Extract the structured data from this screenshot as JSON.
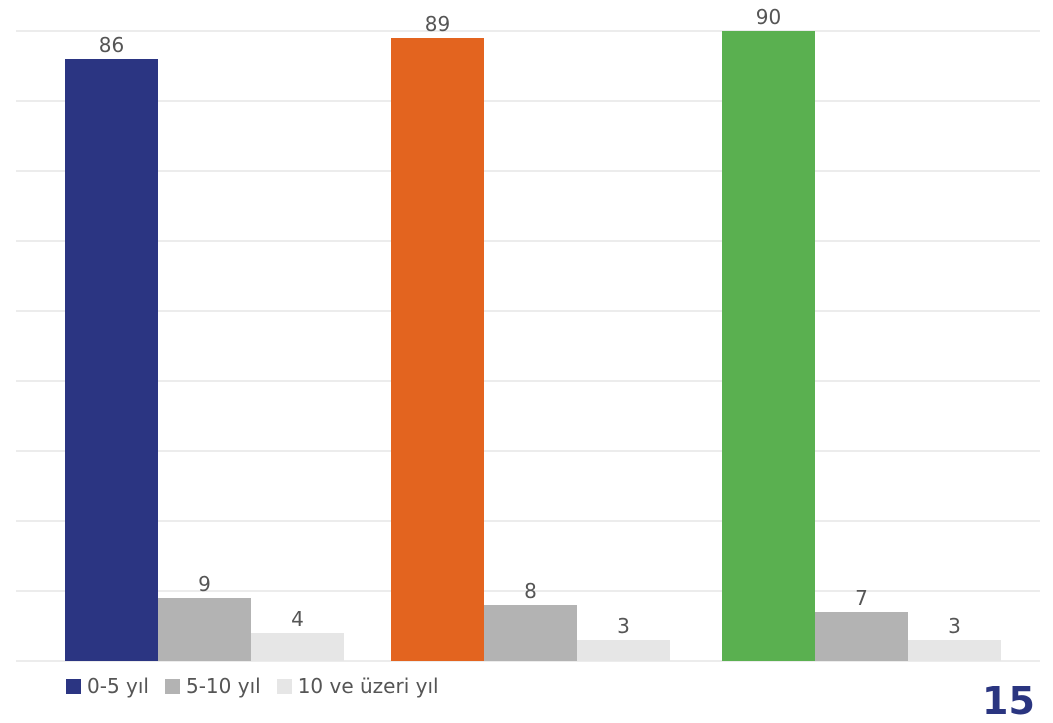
{
  "chart_data": {
    "type": "bar",
    "groups": [
      {
        "values": [
          86,
          9,
          4
        ],
        "primary_color": "#2b3582"
      },
      {
        "values": [
          89,
          8,
          3
        ],
        "primary_color": "#e3641f"
      },
      {
        "values": [
          90,
          7,
          3
        ],
        "primary_color": "#5ab050"
      }
    ],
    "series": [
      {
        "name": "0-5 yıl"
      },
      {
        "name": "5-10 yıl"
      },
      {
        "name": "10 ve üzeri yıl"
      }
    ],
    "series_colors": {
      "secondary": "#b3b3b3",
      "tertiary": "#e6e6e6"
    },
    "ylim": [
      0,
      90
    ],
    "grid": true,
    "legend_position": "bottom-left"
  },
  "legend": {
    "items": [
      {
        "label": "0-5 yıl",
        "color": "#2b3582"
      },
      {
        "label": "5-10 yıl",
        "color": "#b3b3b3"
      },
      {
        "label": "10 ve üzeri yıl",
        "color": "#e6e6e6"
      }
    ]
  },
  "footer": {
    "page_number": "15"
  }
}
